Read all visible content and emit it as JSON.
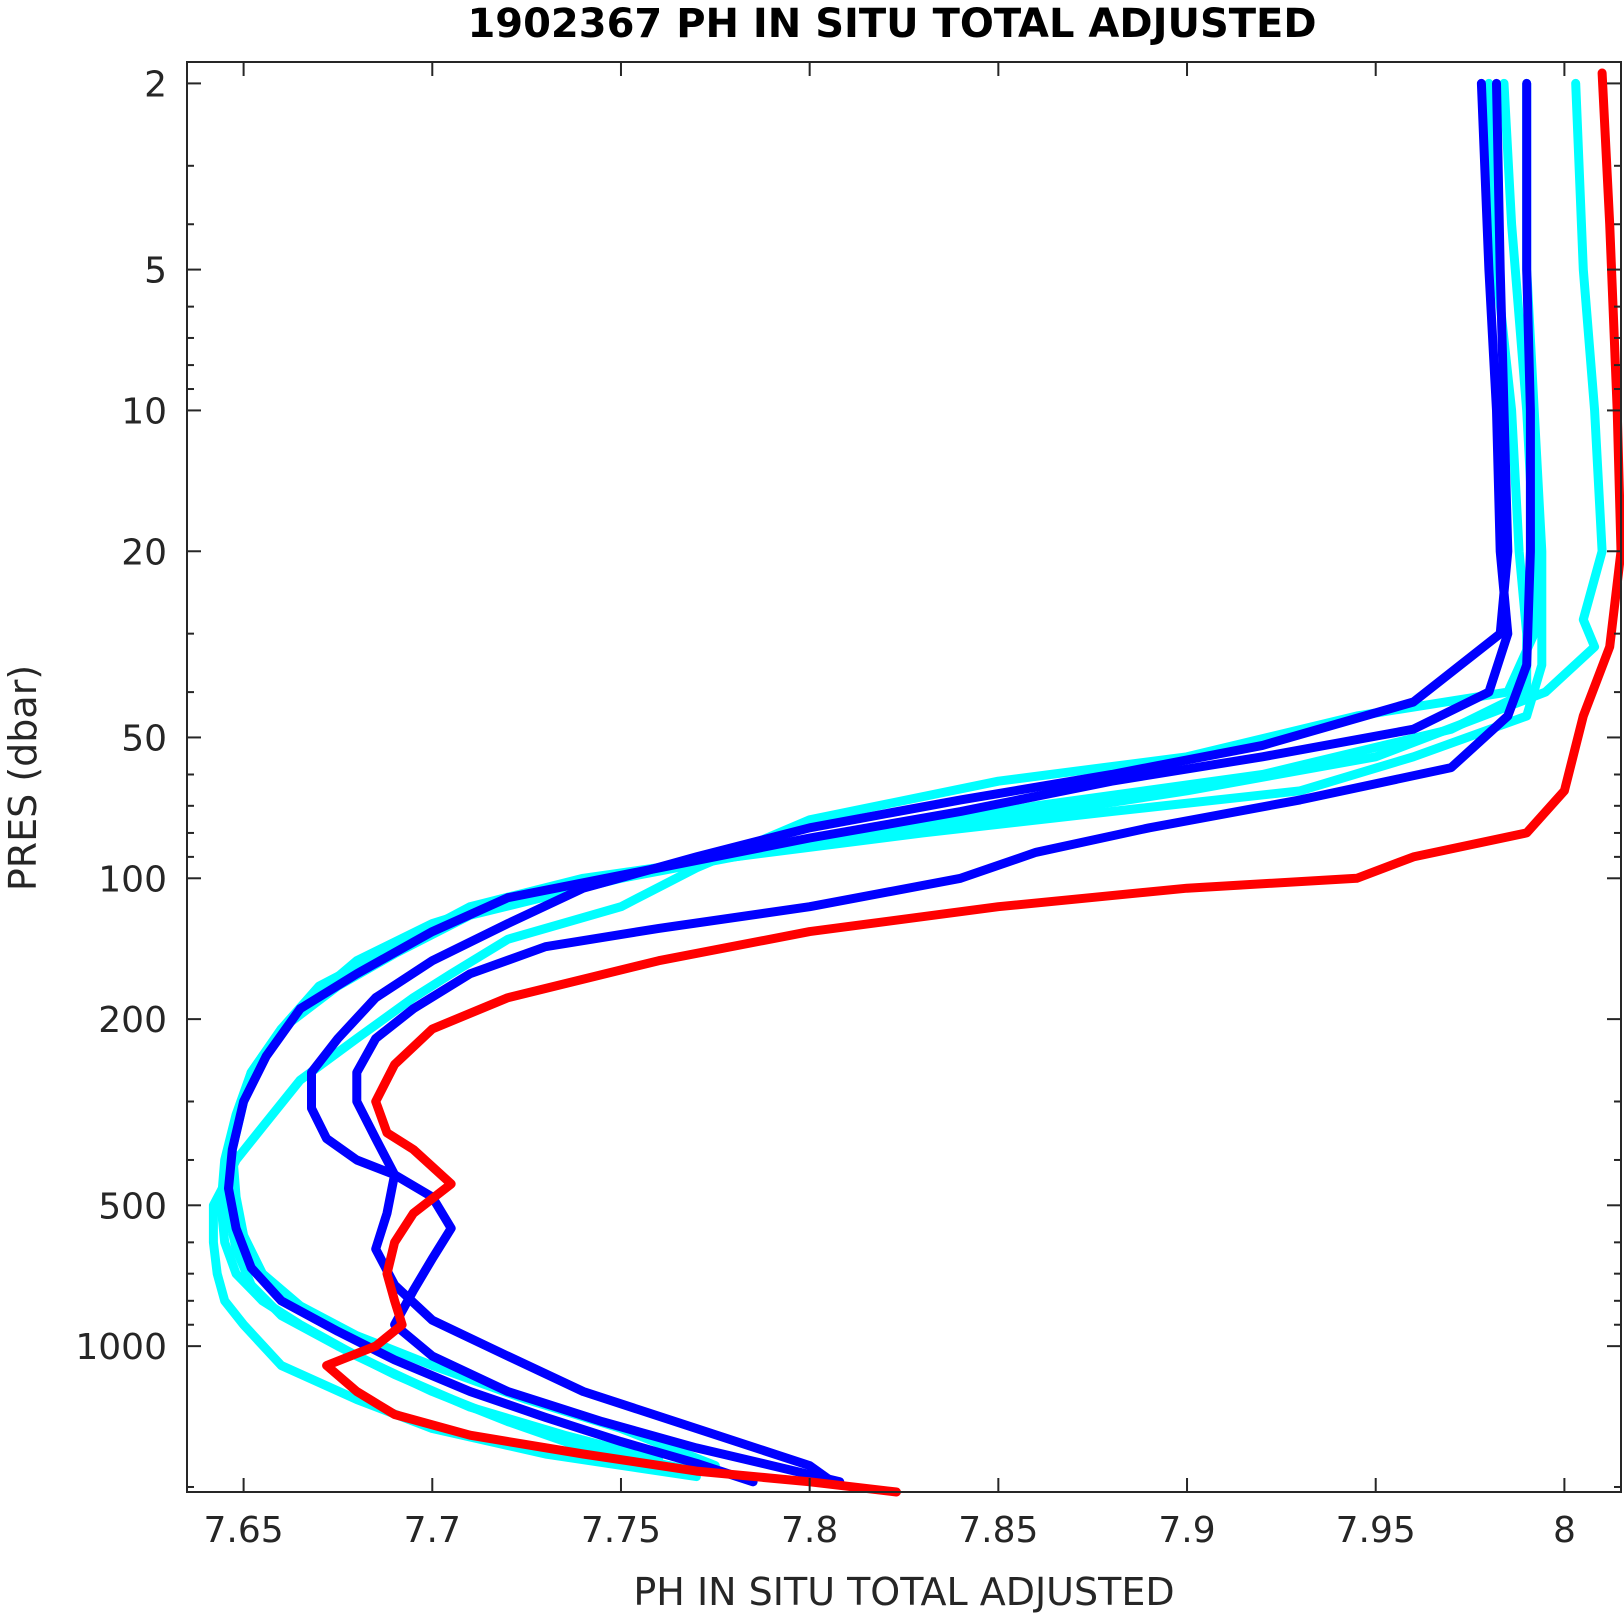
{
  "chart_data": {
    "type": "line",
    "title": "1902367  PH IN SITU TOTAL ADJUSTED",
    "xlabel": "PH IN SITU TOTAL ADJUSTED",
    "ylabel": "PRES (dbar)",
    "xlim": [
      7.635,
      8.015
    ],
    "ylim": [
      1.8,
      2050
    ],
    "yscale": "log",
    "y_reversed": true,
    "grid": false,
    "xticks": [
      7.65,
      7.7,
      7.75,
      7.8,
      7.85,
      7.9,
      7.95,
      8
    ],
    "xtick_labels": [
      "7.65",
      "7.7",
      "7.75",
      "7.8",
      "7.85",
      "7.9",
      "7.95",
      "8"
    ],
    "yticks": [
      2,
      5,
      10,
      20,
      50,
      100,
      200,
      500,
      1000
    ],
    "ytick_labels": [
      "2",
      "5",
      "10",
      "20",
      "50",
      "100",
      "200",
      "500",
      "1000"
    ],
    "series": [
      {
        "color": "#00ffff",
        "x": [
          7.984,
          7.986,
          7.99,
          7.992,
          7.992,
          7.985,
          7.945,
          7.9,
          7.85,
          7.8,
          7.77,
          7.75,
          7.72,
          7.705,
          7.695,
          7.68,
          7.665,
          7.655,
          7.648,
          7.645,
          7.642,
          7.642,
          7.643,
          7.645,
          7.65,
          7.66,
          7.68,
          7.7,
          7.73,
          7.77
        ],
        "y": [
          2,
          4,
          10,
          20,
          30,
          40,
          45,
          55,
          62,
          75,
          95,
          115,
          135,
          160,
          180,
          220,
          270,
          340,
          400,
          450,
          500,
          600,
          700,
          800,
          900,
          1100,
          1300,
          1500,
          1700,
          1900
        ]
      },
      {
        "color": "#00ffff",
        "x": [
          7.98,
          7.982,
          7.986,
          7.988,
          7.99,
          7.99,
          7.97,
          7.92,
          7.86,
          7.82,
          7.78,
          7.75,
          7.71,
          7.69,
          7.675,
          7.66,
          7.652,
          7.648,
          7.645,
          7.644,
          7.645,
          7.648,
          7.655,
          7.665,
          7.68,
          7.7,
          7.72,
          7.74,
          7.77
        ],
        "y": [
          2,
          5,
          10,
          20,
          30,
          40,
          48,
          60,
          70,
          80,
          90,
          100,
          120,
          145,
          170,
          210,
          260,
          320,
          400,
          500,
          600,
          700,
          800,
          900,
          1050,
          1250,
          1450,
          1650,
          1850
        ]
      },
      {
        "color": "#00ffff",
        "x": [
          8.003,
          8.005,
          8.008,
          8.01,
          8.005,
          8.008,
          7.995,
          7.95,
          7.9,
          7.85,
          7.8,
          7.76,
          7.73,
          7.7,
          7.68,
          7.665,
          7.655,
          7.65,
          7.647,
          7.648,
          7.65,
          7.655,
          7.665,
          7.68,
          7.7,
          7.725,
          7.75,
          7.775
        ],
        "y": [
          2,
          5,
          10,
          20,
          28,
          32,
          40,
          55,
          65,
          75,
          85,
          95,
          105,
          125,
          150,
          190,
          240,
          300,
          380,
          480,
          580,
          700,
          820,
          950,
          1100,
          1300,
          1500,
          1800
        ]
      },
      {
        "color": "#00ffff",
        "x": [
          7.99,
          7.99,
          7.992,
          7.994,
          7.994,
          7.99,
          7.96,
          7.93,
          7.88,
          7.83,
          7.78,
          7.74,
          7.71,
          7.69,
          7.67,
          7.66,
          7.652,
          7.648,
          7.646,
          7.646,
          7.648,
          7.652,
          7.66,
          7.675,
          7.69,
          7.71,
          7.735,
          7.76
        ],
        "y": [
          2,
          5,
          10,
          20,
          35,
          45,
          55,
          65,
          72,
          80,
          90,
          100,
          115,
          140,
          170,
          210,
          260,
          330,
          420,
          520,
          620,
          740,
          860,
          1000,
          1150,
          1350,
          1550,
          1750
        ]
      },
      {
        "color": "#0000ff",
        "x": [
          7.978,
          7.98,
          7.982,
          7.983,
          7.985,
          7.98,
          7.96,
          7.92,
          7.88,
          7.84,
          7.8,
          7.76,
          7.72,
          7.7,
          7.68,
          7.665,
          7.656,
          7.65,
          7.647,
          7.646,
          7.648,
          7.652,
          7.66,
          7.675,
          7.69,
          7.71,
          7.73,
          7.75,
          7.77,
          7.785
        ],
        "y": [
          2,
          5,
          10,
          20,
          30,
          40,
          48,
          55,
          62,
          72,
          82,
          95,
          110,
          130,
          160,
          190,
          240,
          300,
          380,
          460,
          560,
          680,
          800,
          930,
          1070,
          1250,
          1420,
          1600,
          1780,
          1950
        ]
      },
      {
        "color": "#0000ff",
        "x": [
          7.99,
          7.99,
          7.991,
          7.991,
          7.99,
          7.985,
          7.97,
          7.93,
          7.89,
          7.86,
          7.84,
          7.8,
          7.76,
          7.73,
          7.71,
          7.695,
          7.685,
          7.68,
          7.68,
          7.685,
          7.69,
          7.688,
          7.685,
          7.69,
          7.7,
          7.72,
          7.74,
          7.77,
          7.8,
          7.806
        ],
        "y": [
          2,
          5,
          10,
          20,
          35,
          45,
          58,
          68,
          78,
          88,
          100,
          115,
          128,
          140,
          160,
          190,
          220,
          260,
          300,
          360,
          430,
          520,
          620,
          740,
          880,
          1050,
          1250,
          1500,
          1800,
          1950
        ]
      },
      {
        "color": "#0000ff",
        "x": [
          7.982,
          7.983,
          7.984,
          7.985,
          7.983,
          7.96,
          7.92,
          7.88,
          7.84,
          7.8,
          7.77,
          7.74,
          7.72,
          7.7,
          7.685,
          7.675,
          7.668,
          7.668,
          7.672,
          7.68,
          7.69,
          7.7,
          7.705,
          7.7,
          7.695,
          7.69,
          7.7,
          7.72,
          7.745,
          7.77,
          7.79,
          7.808
        ],
        "y": [
          2,
          5,
          10,
          20,
          30,
          42,
          52,
          60,
          68,
          78,
          90,
          105,
          125,
          150,
          180,
          220,
          260,
          310,
          360,
          400,
          430,
          480,
          560,
          650,
          760,
          900,
          1050,
          1250,
          1450,
          1650,
          1800,
          1950
        ]
      },
      {
        "color": "#ff0000",
        "x": [
          8.01,
          8.012,
          8.014,
          8.015,
          8.012,
          8.005,
          8.0,
          7.99,
          7.96,
          7.945,
          7.9,
          7.85,
          7.8,
          7.76,
          7.72,
          7.7,
          7.69,
          7.685,
          7.688,
          7.695,
          7.705,
          7.695,
          7.69,
          7.688,
          7.69,
          7.692,
          7.685,
          7.672,
          7.68,
          7.69,
          7.71,
          7.74,
          7.77,
          7.8,
          7.823
        ],
        "y": [
          1.9,
          4,
          10,
          20,
          32,
          45,
          65,
          80,
          90,
          100,
          105,
          115,
          130,
          150,
          180,
          210,
          250,
          300,
          350,
          380,
          450,
          520,
          600,
          700,
          800,
          900,
          1000,
          1100,
          1250,
          1400,
          1550,
          1700,
          1850,
          1950,
          2050
        ]
      }
    ]
  }
}
